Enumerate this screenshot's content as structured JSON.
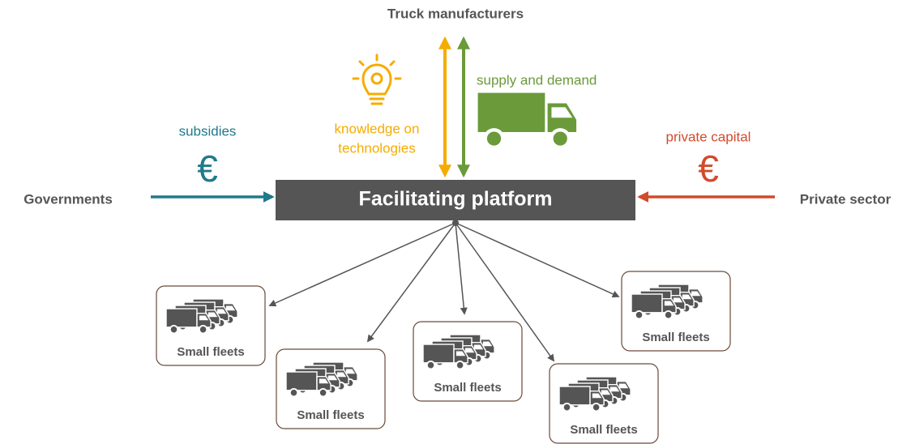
{
  "platform": {
    "label": "Facilitating platform"
  },
  "top": {
    "label": "Truck manufacturers"
  },
  "knowledge": {
    "lines": [
      "knowledge on",
      "technologies"
    ]
  },
  "supply": {
    "label": "supply and demand"
  },
  "left": {
    "label": "Governments",
    "flow": "subsidies",
    "symbol": "€"
  },
  "right": {
    "label": "Private sector",
    "flow": "private capital",
    "symbol": "€"
  },
  "fleets": [
    {
      "label": "Small fleets"
    },
    {
      "label": "Small fleets"
    },
    {
      "label": "Small fleets"
    },
    {
      "label": "Small fleets"
    },
    {
      "label": "Small fleets"
    }
  ]
}
